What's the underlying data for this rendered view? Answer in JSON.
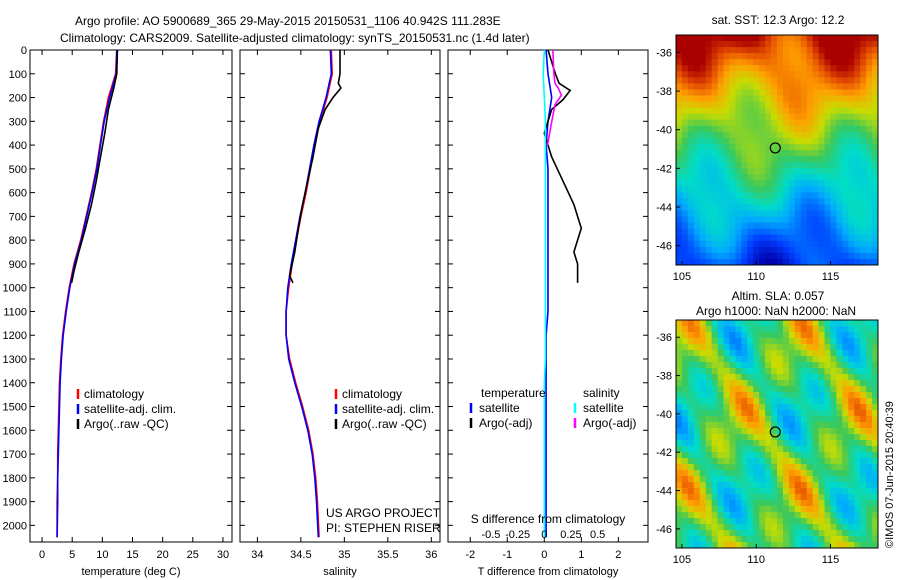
{
  "header": {
    "line1": "Argo profile: AO 5900689_365 29-May-2015 20150531_1106 40.942S 111.283E",
    "line2": "Climatology: CARS2009. Satellite-adjusted climatology: synTS_20150531.nc (1.4d later)"
  },
  "credit": "©IMOS 07-Jun-2015 20:40:39",
  "colors": {
    "climatology": "#ff0000",
    "satellite": "#0000ff",
    "argo": "#000000",
    "salinity_sat": "#00ffff",
    "salinity_argo": "#ff00ff"
  },
  "chart_data": [
    {
      "id": "temperature",
      "type": "line",
      "xlabel": "temperature (deg C)",
      "xlim": [
        -2,
        31.5
      ],
      "ylim": [
        2070,
        0
      ],
      "xticks": [
        0,
        5,
        10,
        15,
        20,
        25,
        30
      ],
      "yticks": [
        0,
        100,
        200,
        300,
        400,
        500,
        600,
        700,
        800,
        900,
        1000,
        1100,
        1200,
        1300,
        1400,
        1500,
        1600,
        1700,
        1800,
        1900,
        2000
      ],
      "legend": [
        "climatology",
        "satellite-adj. clim.",
        "Argo(..raw -QC)"
      ],
      "series": [
        {
          "name": "climatology",
          "color": "#ff0000",
          "x": [
            12.4,
            12.2,
            11.0,
            10.2,
            9.6,
            9.0,
            8.2,
            7.3,
            6.4,
            5.3,
            4.5,
            3.9,
            3.4,
            3.1,
            2.9,
            2.8,
            2.7,
            2.6,
            2.6,
            2.5,
            2.5
          ],
          "y": [
            0,
            100,
            200,
            300,
            400,
            500,
            600,
            700,
            800,
            900,
            1000,
            1100,
            1200,
            1300,
            1400,
            1500,
            1600,
            1700,
            1800,
            1900,
            2050
          ]
        },
        {
          "name": "satellite-adj. clim.",
          "color": "#0000ff",
          "x": [
            12.4,
            12.3,
            11.2,
            10.3,
            9.7,
            9.1,
            8.3,
            7.4,
            6.5,
            5.4,
            4.6,
            4.0,
            3.5,
            3.2,
            3.0,
            2.9,
            2.8,
            2.7,
            2.6,
            2.6,
            2.5
          ],
          "y": [
            0,
            100,
            200,
            300,
            400,
            500,
            600,
            700,
            800,
            900,
            1000,
            1100,
            1200,
            1300,
            1400,
            1500,
            1600,
            1700,
            1800,
            1900,
            2050
          ]
        },
        {
          "name": "Argo(..raw -QC)",
          "color": "#000000",
          "x": [
            12.5,
            12.4,
            11.9,
            11.0,
            10.4,
            9.7,
            9.0,
            8.2,
            7.2,
            6.1,
            5.3,
            4.9
          ],
          "y": [
            0,
            100,
            160,
            250,
            350,
            450,
            550,
            650,
            750,
            850,
            930,
            980
          ]
        }
      ]
    },
    {
      "id": "salinity",
      "type": "line",
      "xlabel": "salinity",
      "xlim": [
        33.8,
        36.1
      ],
      "ylim": [
        2070,
        0
      ],
      "xticks": [
        34,
        34.5,
        35,
        35.5,
        36
      ],
      "xticklabels": [
        "34",
        "34.5",
        "35",
        "35.5",
        "36"
      ],
      "legend": [
        "climatology",
        "satellite-adj. clim.",
        "Argo(..raw -QC)"
      ],
      "annotation": [
        "US ARGO PROJECT",
        "PI: STEPHEN RISER"
      ],
      "series": [
        {
          "name": "climatology",
          "color": "#ff0000",
          "x": [
            34.85,
            34.86,
            34.8,
            34.72,
            34.66,
            34.61,
            34.56,
            34.5,
            34.45,
            34.4,
            34.36,
            34.33,
            34.33,
            34.37,
            34.44,
            34.52,
            34.59,
            34.64,
            34.67,
            34.69,
            34.71
          ],
          "y": [
            0,
            100,
            200,
            300,
            400,
            500,
            600,
            700,
            800,
            900,
            1000,
            1100,
            1200,
            1300,
            1400,
            1500,
            1600,
            1700,
            1800,
            1900,
            2050
          ]
        },
        {
          "name": "satellite-adj. clim.",
          "color": "#0000ff",
          "x": [
            34.84,
            34.85,
            34.79,
            34.71,
            34.65,
            34.6,
            34.55,
            34.49,
            34.44,
            34.39,
            34.35,
            34.33,
            34.33,
            34.36,
            34.43,
            34.51,
            34.58,
            34.63,
            34.66,
            34.68,
            34.7
          ],
          "y": [
            0,
            100,
            200,
            300,
            400,
            500,
            600,
            700,
            800,
            900,
            1000,
            1100,
            1200,
            1300,
            1400,
            1500,
            1600,
            1700,
            1800,
            1900,
            2050
          ]
        },
        {
          "name": "Argo(..raw -QC)",
          "color": "#000000",
          "x": [
            34.95,
            34.95,
            34.93,
            34.96,
            34.87,
            34.78,
            34.7,
            34.64,
            34.58,
            34.52,
            34.47,
            34.43,
            34.4,
            34.37,
            34.41
          ],
          "y": [
            0,
            100,
            140,
            160,
            200,
            250,
            330,
            450,
            550,
            650,
            750,
            850,
            900,
            950,
            980
          ]
        }
      ]
    },
    {
      "id": "differences",
      "type": "line",
      "xlabel": "T difference from climatology",
      "xlabel_top": "S difference from climatology",
      "xlim": [
        -2.6,
        2.8
      ],
      "ylim": [
        2070,
        0
      ],
      "xticks": [
        -2,
        -1,
        0,
        1,
        2
      ],
      "xticklabels": [
        "-2",
        "-1",
        "0",
        "1",
        "2"
      ],
      "sticks": [
        -0.5,
        -0.25,
        0,
        0.25,
        0.5
      ],
      "sticklabels": [
        "-0.5",
        "-0.25",
        "0",
        "0.25",
        "0.5"
      ],
      "legend_titles": [
        "temperature",
        "salinity"
      ],
      "legend_temperature": [
        "satellite",
        "Argo(-adj)"
      ],
      "legend_salinity": [
        "satellite",
        "Argo(-adj)"
      ],
      "series": [
        {
          "name": "temperature satellite",
          "color": "#0000ff",
          "x": [
            0.05,
            0.1,
            0.2,
            0.1,
            0.05,
            0.1,
            0.1,
            0.1,
            0.1,
            0.1,
            0.1,
            0.1,
            0.05,
            0.05,
            0.05,
            0.05,
            0.05,
            0.05,
            0.05,
            0.05
          ],
          "y": [
            0,
            100,
            200,
            300,
            400,
            500,
            600,
            700,
            800,
            900,
            1000,
            1100,
            1200,
            1300,
            1400,
            1500,
            1600,
            1700,
            1800,
            2050
          ]
        },
        {
          "name": "temperature Argo(-adj)",
          "color": "#000000",
          "x": [
            0.1,
            0.3,
            0.4,
            0.7,
            0.5,
            0.2,
            0.0,
            0.2,
            0.5,
            0.8,
            1.0,
            0.9,
            0.8,
            0.9,
            0.9,
            0.9,
            0.9
          ],
          "y": [
            0,
            100,
            140,
            170,
            210,
            250,
            350,
            450,
            550,
            650,
            750,
            800,
            850,
            900,
            930,
            960,
            980
          ]
        },
        {
          "name": "salinity satellite",
          "color": "#00ffff",
          "x": [
            0.0,
            -0.01,
            0.0,
            0.01,
            0.01,
            0.01,
            0.01,
            0.01,
            0.01,
            0.01,
            0.01,
            0.01,
            0.01,
            0.01,
            0.0,
            0.0,
            0.0,
            0.0,
            0.0,
            0.0
          ],
          "y": [
            0,
            100,
            200,
            300,
            400,
            500,
            600,
            700,
            800,
            900,
            1000,
            1100,
            1200,
            1300,
            1400,
            1500,
            1600,
            1700,
            1800,
            2050
          ]
        },
        {
          "name": "salinity Argo(-adj)",
          "color": "#ff00ff",
          "x": [
            0.08,
            0.09,
            0.1,
            0.13,
            0.16,
            0.1,
            0.07,
            0.03
          ],
          "y": [
            0,
            100,
            140,
            160,
            190,
            230,
            300,
            400
          ]
        }
      ]
    },
    {
      "id": "sst-map",
      "type": "heatmap",
      "title": "sat. SST: 12.3  Argo: 12.2",
      "xlim": [
        104.6,
        118.2
      ],
      "ylim": [
        -47.0,
        -35.1
      ],
      "xticks": [
        105,
        110,
        115
      ],
      "yticks": [
        -36,
        -38,
        -40,
        -42,
        -44,
        -46
      ],
      "marker": {
        "lon": 111.283,
        "lat": -40.942
      }
    },
    {
      "id": "sla-map",
      "type": "heatmap",
      "title": "Altim. SLA: 0.057",
      "title2": "Argo h1000: NaN h2000: NaN",
      "xlim": [
        104.6,
        118.2
      ],
      "ylim": [
        -47.0,
        -35.1
      ],
      "xticks": [
        105,
        110,
        115
      ],
      "yticks": [
        -36,
        -38,
        -40,
        -42,
        -44,
        -46
      ],
      "marker": {
        "lon": 111.283,
        "lat": -40.942
      }
    }
  ]
}
